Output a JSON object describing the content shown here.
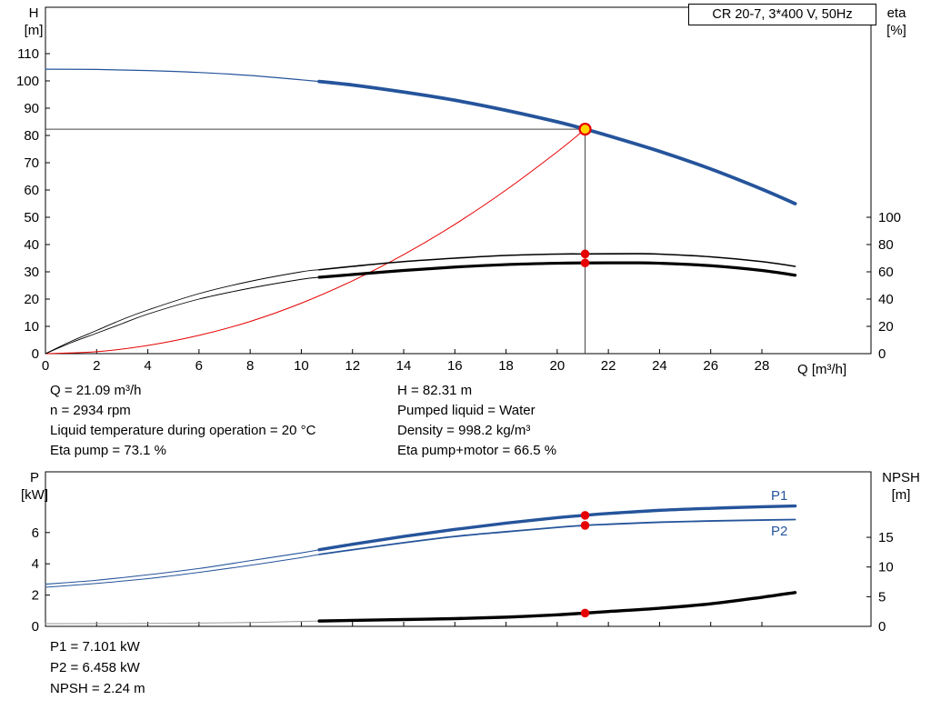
{
  "title_box": {
    "label": "CR 20-7, 3*400 V, 50Hz"
  },
  "colors": {
    "blue": "#25549b",
    "red": "#e60000",
    "black": "#000000",
    "grey": "#9a9a9a",
    "marker_fill": "#ffd500",
    "crosshair": "#444444"
  },
  "annotations_top": {
    "left": [
      "Q = 21.09 m³/h",
      "n = 2934 rpm",
      "Liquid temperature during operation = 20 °C",
      "Eta pump = 73.1 %"
    ],
    "right": [
      "H = 82.31 m",
      "Pumped liquid = Water",
      "Density = 998.2 kg/m³",
      "Eta pump+motor = 66.5 %"
    ]
  },
  "annotations_bottom": [
    "P1 = 7.101 kW",
    "P2 = 6.458 kW",
    "NPSH = 2.24 m"
  ],
  "chart_data": [
    {
      "type": "line",
      "title": "QH and efficiency curves",
      "left_axis": {
        "title": "H",
        "unit": "[m]",
        "ticks": [
          0,
          10,
          20,
          30,
          40,
          50,
          60,
          70,
          80,
          90,
          100,
          110
        ],
        "range": [
          0,
          127
        ]
      },
      "right_axis": {
        "title": "eta",
        "unit": "[%]",
        "ticks": [
          0,
          20,
          40,
          60,
          80,
          100
        ],
        "range": [
          0,
          254
        ]
      },
      "x_axis": {
        "label": "Q [m³/h]",
        "ticks": [
          0,
          2,
          4,
          6,
          8,
          10,
          12,
          14,
          16,
          18,
          20,
          22,
          24,
          26,
          28
        ],
        "range": [
          0,
          32.3
        ]
      },
      "grid": false,
      "crosshair": {
        "q": 21.09,
        "value": 82.31,
        "axis": "left"
      },
      "series": [
        {
          "name": "head-curve-extrapolated",
          "axis": "left",
          "color": "blue",
          "width": 1.2,
          "points": [
            [
              0,
              104.3
            ],
            [
              2,
              104.2
            ],
            [
              4,
              103.8
            ],
            [
              6,
              103.1
            ],
            [
              8,
              102.0
            ],
            [
              10,
              100.4
            ],
            [
              10.7,
              99.8
            ]
          ]
        },
        {
          "name": "head-curve",
          "axis": "left",
          "color": "blue",
          "width": 3.8,
          "points": [
            [
              10.7,
              99.8
            ],
            [
              12,
              98.5
            ],
            [
              14,
              95.9
            ],
            [
              16,
              92.9
            ],
            [
              18,
              89.2
            ],
            [
              20,
              85.0
            ],
            [
              21.09,
              82.31
            ],
            [
              22,
              79.9
            ],
            [
              24,
              74.2
            ],
            [
              26,
              67.7
            ],
            [
              28,
              60.3
            ],
            [
              29.3,
              55.0
            ]
          ]
        },
        {
          "name": "system-curve",
          "axis": "left",
          "color": "red",
          "width": 1.0,
          "points": [
            [
              0,
              0
            ],
            [
              2,
              0.7
            ],
            [
              4,
              3.0
            ],
            [
              6,
              6.7
            ],
            [
              8,
              11.8
            ],
            [
              10,
              18.5
            ],
            [
              12,
              26.7
            ],
            [
              14,
              36.3
            ],
            [
              16,
              47.4
            ],
            [
              18,
              60.0
            ],
            [
              20,
              74.0
            ],
            [
              21.09,
              82.31
            ]
          ]
        },
        {
          "name": "eta-pump-extrapolated",
          "axis": "right",
          "color": "black",
          "width": 0.9,
          "points": [
            [
              0,
              0
            ],
            [
              1,
              9
            ],
            [
              2,
              17
            ],
            [
              3,
              25
            ],
            [
              4,
              32
            ],
            [
              6,
              44
            ],
            [
              8,
              53
            ],
            [
              10,
              60
            ],
            [
              10.7,
              61.5
            ]
          ]
        },
        {
          "name": "eta-pump-curve",
          "axis": "right",
          "color": "black",
          "width": 1.6,
          "points": [
            [
              10.7,
              61.5
            ],
            [
              12,
              64
            ],
            [
              14,
              67.5
            ],
            [
              16,
              70
            ],
            [
              18,
              72
            ],
            [
              20,
              73
            ],
            [
              21.09,
              73.1
            ],
            [
              23,
              73.3
            ],
            [
              24,
              73
            ],
            [
              26,
              71
            ],
            [
              28,
              67.5
            ],
            [
              29.3,
              64
            ]
          ]
        },
        {
          "name": "eta-pump-motor-extrapolated",
          "axis": "right",
          "color": "black",
          "width": 0.9,
          "points": [
            [
              0,
              0
            ],
            [
              1,
              8
            ],
            [
              2,
              15
            ],
            [
              3,
              22
            ],
            [
              4,
              29
            ],
            [
              6,
              40
            ],
            [
              8,
              48
            ],
            [
              10,
              54.5
            ],
            [
              10.7,
              56
            ]
          ]
        },
        {
          "name": "eta-pump-motor-curve",
          "axis": "right",
          "color": "black",
          "width": 3.2,
          "points": [
            [
              10.7,
              56
            ],
            [
              12,
              58
            ],
            [
              14,
              61
            ],
            [
              16,
              63.5
            ],
            [
              18,
              65.3
            ],
            [
              20,
              66.3
            ],
            [
              21.09,
              66.5
            ],
            [
              23,
              66.6
            ],
            [
              24,
              66.3
            ],
            [
              26,
              64.5
            ],
            [
              28,
              61
            ],
            [
              29.3,
              57.5
            ]
          ]
        }
      ],
      "markers": [
        {
          "type": "dot",
          "q": 21.09,
          "value": 73.1,
          "axis": "right"
        },
        {
          "type": "dot",
          "q": 21.09,
          "value": 66.5,
          "axis": "right"
        },
        {
          "type": "duty",
          "q": 21.09,
          "value": 82.31,
          "axis": "left"
        }
      ]
    },
    {
      "type": "line",
      "title": "Power and NPSH curves",
      "left_axis": {
        "title": "P",
        "unit": "[kW]",
        "ticks": [
          0,
          2,
          4,
          6
        ],
        "range": [
          0,
          9.9
        ]
      },
      "right_axis": {
        "title": "NPSH",
        "unit": "[m]",
        "ticks": [
          0,
          5,
          10,
          15
        ],
        "range": [
          0,
          26
        ]
      },
      "x_axis": {
        "label": "",
        "ticks": [
          0,
          2,
          4,
          6,
          8,
          10,
          12,
          14,
          16,
          18,
          20,
          22,
          24,
          26,
          28
        ],
        "range": [
          0,
          32.3
        ]
      },
      "grid": false,
      "series_labels": {
        "p1": "P1",
        "p2": "P2"
      },
      "series": [
        {
          "name": "p1-curve-extrapolated",
          "axis": "left",
          "color": "blue",
          "width": 1.1,
          "points": [
            [
              0,
              2.7
            ],
            [
              2,
              2.95
            ],
            [
              4,
              3.3
            ],
            [
              6,
              3.7
            ],
            [
              8,
              4.2
            ],
            [
              10,
              4.7
            ],
            [
              10.7,
              4.9
            ]
          ]
        },
        {
          "name": "p1-curve",
          "axis": "left",
          "color": "blue",
          "width": 3.4,
          "points": [
            [
              10.7,
              4.9
            ],
            [
              12,
              5.25
            ],
            [
              14,
              5.75
            ],
            [
              16,
              6.2
            ],
            [
              18,
              6.6
            ],
            [
              20,
              6.95
            ],
            [
              21.09,
              7.101
            ],
            [
              22,
              7.22
            ],
            [
              24,
              7.42
            ],
            [
              26,
              7.55
            ],
            [
              28,
              7.65
            ],
            [
              29.3,
              7.7
            ]
          ]
        },
        {
          "name": "p2-curve-extrapolated",
          "axis": "left",
          "color": "blue",
          "width": 1.0,
          "points": [
            [
              0,
              2.5
            ],
            [
              2,
              2.75
            ],
            [
              4,
              3.05
            ],
            [
              6,
              3.45
            ],
            [
              8,
              3.9
            ],
            [
              10,
              4.4
            ],
            [
              10.7,
              4.6
            ]
          ]
        },
        {
          "name": "p2-curve",
          "axis": "left",
          "color": "blue",
          "width": 1.8,
          "points": [
            [
              10.7,
              4.6
            ],
            [
              12,
              4.9
            ],
            [
              14,
              5.35
            ],
            [
              16,
              5.75
            ],
            [
              18,
              6.05
            ],
            [
              20,
              6.33
            ],
            [
              21.09,
              6.458
            ],
            [
              22,
              6.53
            ],
            [
              24,
              6.66
            ],
            [
              26,
              6.74
            ],
            [
              28,
              6.8
            ],
            [
              29.3,
              6.83
            ]
          ]
        },
        {
          "name": "npsh-curve-extrapolated",
          "axis": "right",
          "color": "grey",
          "width": 1.0,
          "points": [
            [
              0,
              0.45
            ],
            [
              4,
              0.5
            ],
            [
              8,
              0.65
            ],
            [
              10.7,
              0.9
            ]
          ]
        },
        {
          "name": "npsh-curve",
          "axis": "right",
          "color": "black",
          "width": 3.4,
          "points": [
            [
              10.7,
              0.9
            ],
            [
              12,
              1.0
            ],
            [
              14,
              1.15
            ],
            [
              16,
              1.3
            ],
            [
              18,
              1.55
            ],
            [
              20,
              1.95
            ],
            [
              21.09,
              2.24
            ],
            [
              22,
              2.5
            ],
            [
              24,
              3.05
            ],
            [
              26,
              3.8
            ],
            [
              28,
              4.9
            ],
            [
              29.3,
              5.7
            ]
          ]
        }
      ],
      "markers": [
        {
          "type": "dot",
          "q": 21.09,
          "value": 7.101,
          "axis": "left"
        },
        {
          "type": "dot",
          "q": 21.09,
          "value": 6.458,
          "axis": "left"
        },
        {
          "type": "dot",
          "q": 21.09,
          "value": 2.24,
          "axis": "right"
        }
      ]
    }
  ]
}
